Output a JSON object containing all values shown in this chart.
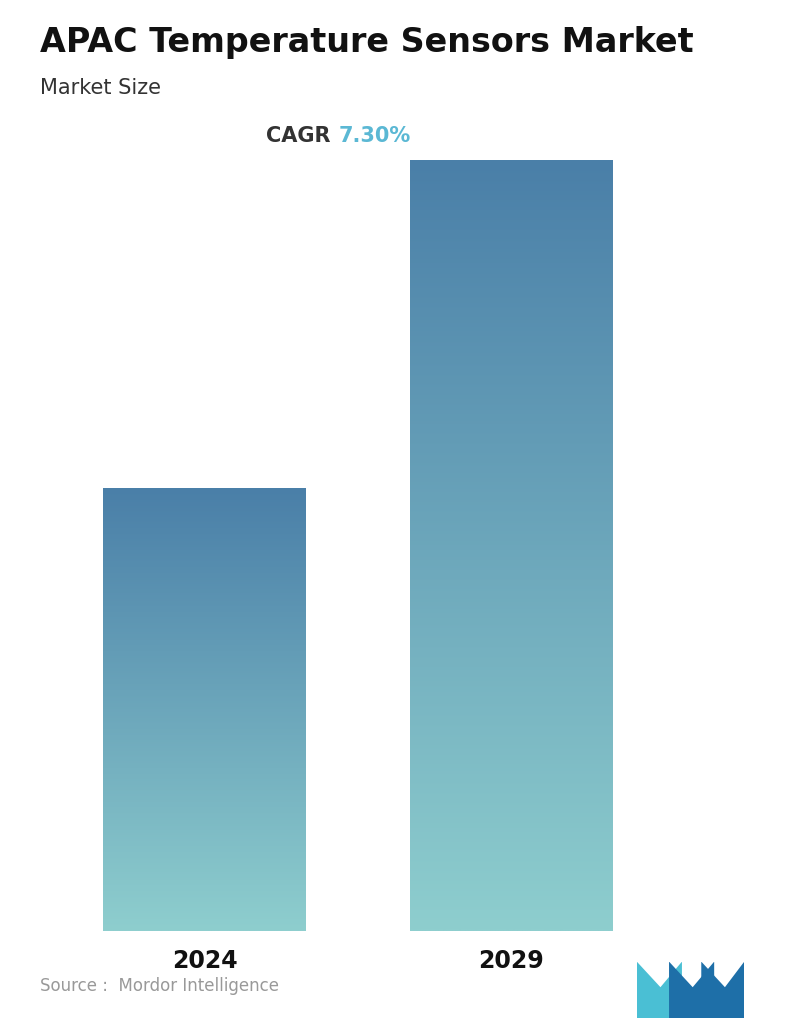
{
  "title": "APAC Temperature Sensors Market",
  "subtitle": "Market Size",
  "cagr_label": "CAGR",
  "cagr_value": "7.30%",
  "cagr_label_color": "#333333",
  "cagr_value_color": "#5BB8D4",
  "categories": [
    "2024",
    "2029"
  ],
  "values": [
    0.575,
    1.0
  ],
  "bar_top_color": "#4A7FA8",
  "bar_bottom_color": "#8ECECE",
  "source_text": "Source :  Mordor Intelligence",
  "background_color": "#ffffff",
  "title_fontsize": 24,
  "subtitle_fontsize": 15,
  "cagr_fontsize": 15,
  "tick_fontsize": 17,
  "source_fontsize": 12
}
